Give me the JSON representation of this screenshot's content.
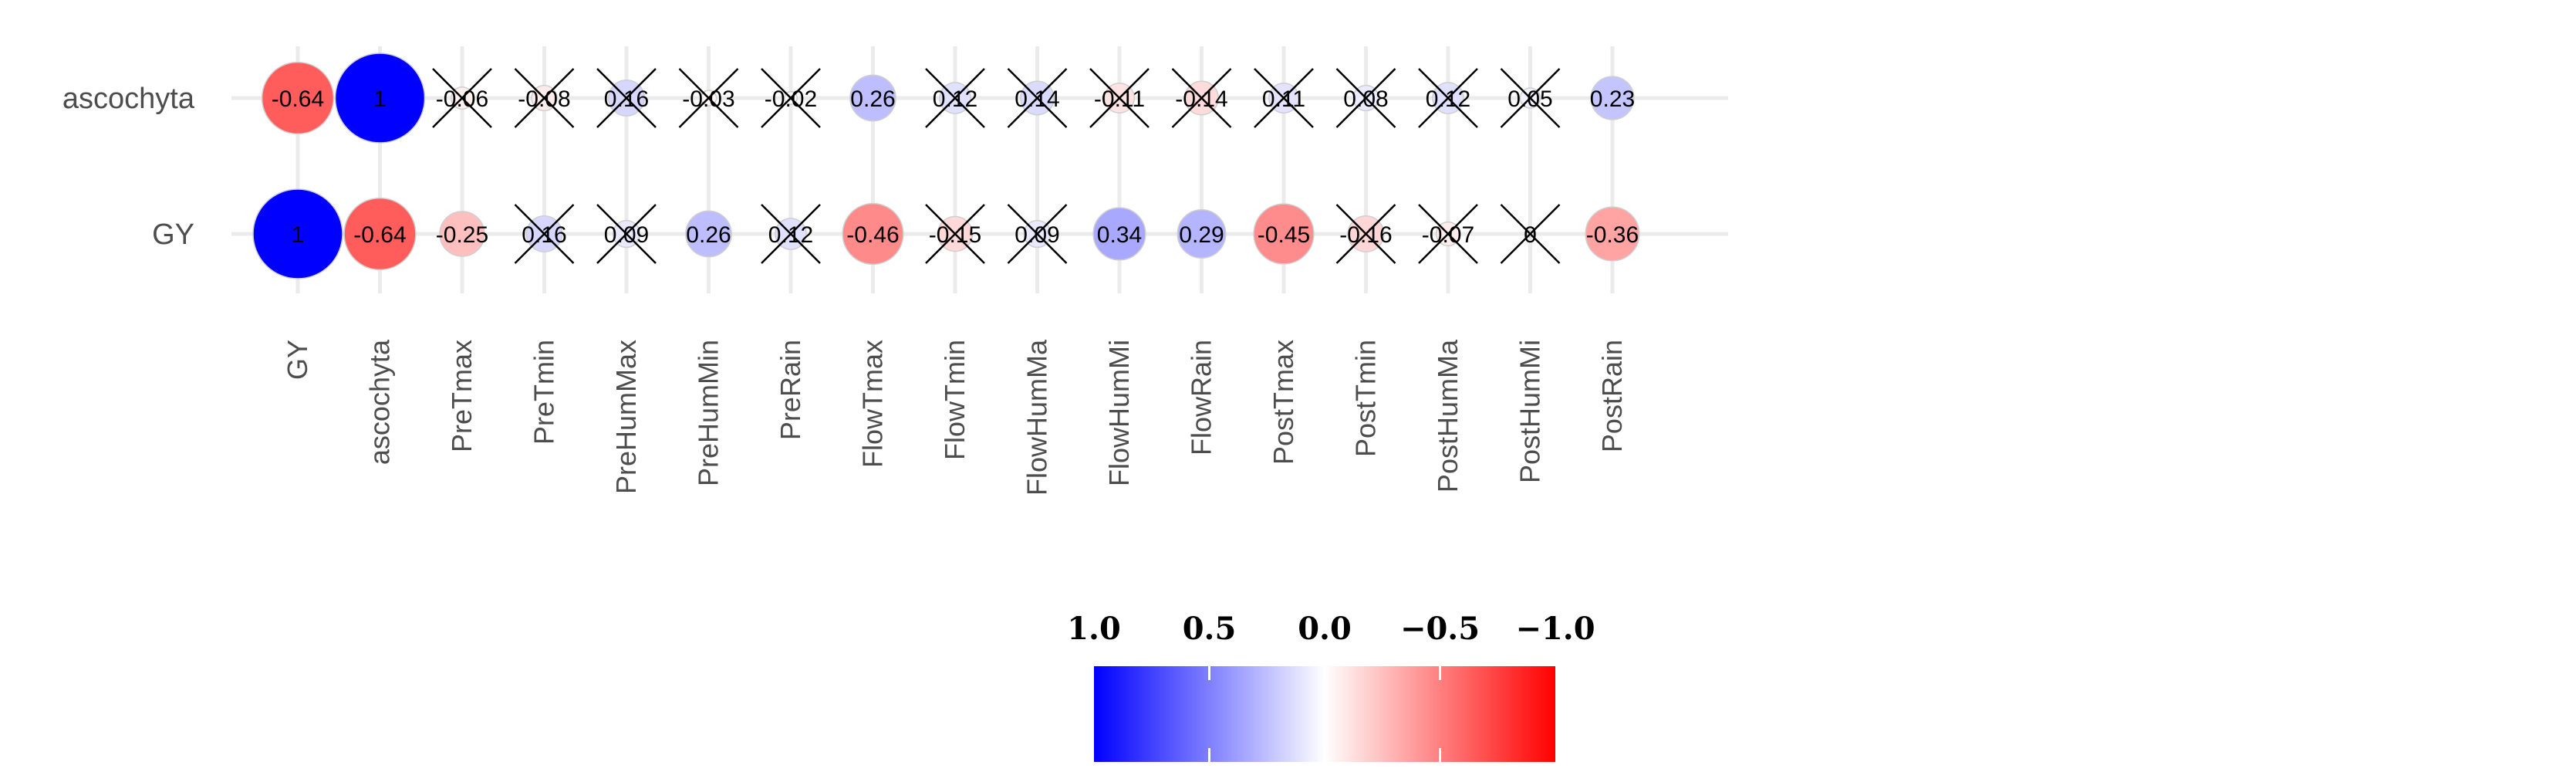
{
  "chart_data": {
    "type": "heatmap",
    "title": "",
    "xlabel": "",
    "ylabel": "",
    "rows": [
      "ascochyta",
      "GY"
    ],
    "columns": [
      "GY",
      "ascochyta",
      "PreTmax",
      "PreTmin",
      "PreHumMax",
      "PreHumMin",
      "PreRain",
      "FlowTmax",
      "FlowTmin",
      "FlowHumMa",
      "FlowHumMi",
      "FlowRain",
      "PostTmax",
      "PostTmin",
      "PostHumMa",
      "PostHumMi",
      "PostRain"
    ],
    "values": [
      [
        -0.64,
        1,
        -0.06,
        -0.08,
        0.16,
        -0.03,
        -0.02,
        0.26,
        0.12,
        0.14,
        -0.11,
        -0.14,
        0.11,
        0.08,
        0.12,
        0.05,
        0.23
      ],
      [
        1,
        -0.64,
        -0.25,
        0.16,
        0.09,
        0.26,
        0.12,
        -0.46,
        -0.15,
        0.09,
        0.34,
        0.29,
        -0.45,
        -0.16,
        -0.07,
        0,
        -0.36
      ]
    ],
    "labels": [
      [
        "-0.64",
        "1",
        "-0.06",
        "-0.08",
        "0.16",
        "-0.03",
        "-0.02",
        "0.26",
        "0.12",
        "0.14",
        "-0.11",
        "-0.14",
        "0.11",
        "0.08",
        "0.12",
        "0.05",
        "0.23"
      ],
      [
        "1",
        "-0.64",
        "-0.25",
        "0.16",
        "0.09",
        "0.26",
        "0.12",
        "-0.46",
        "-0.15",
        "0.09",
        "0.34",
        "0.29",
        "-0.45",
        "-0.16",
        "-0.07",
        "0",
        "-0.36"
      ]
    ],
    "insignificant": [
      [
        false,
        false,
        true,
        true,
        true,
        true,
        true,
        false,
        true,
        true,
        true,
        true,
        true,
        true,
        true,
        true,
        false
      ],
      [
        false,
        false,
        false,
        true,
        true,
        false,
        true,
        false,
        true,
        true,
        false,
        false,
        false,
        true,
        true,
        true,
        false
      ]
    ],
    "legend": {
      "placement": "bottom",
      "ticks": [
        1.0,
        0.5,
        0.0,
        -0.5,
        -1.0
      ],
      "tick_labels": [
        "1.0",
        "0.5",
        "0.0",
        "−0.5",
        "−1.0"
      ],
      "color_high": "#0000ff",
      "color_mid": "#ffffff",
      "color_low": "#ff0000"
    },
    "grid": true,
    "grid_color": "#ebebeb",
    "cell_border_color": "#cfcfcf"
  }
}
